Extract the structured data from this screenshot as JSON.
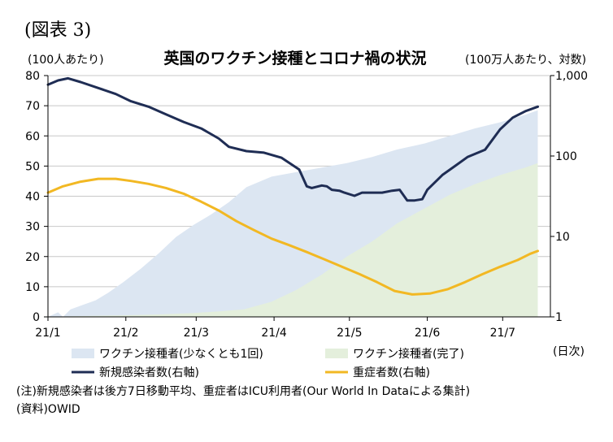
{
  "figure_label": "(図表 3)",
  "notes": {
    "note": "(注)新規感染者は後方7日移動平均、重症者はICU利用者(Our World In Dataによる集計)",
    "source": "(資料)OWID"
  },
  "chart_data": {
    "type": "area",
    "title": "英国のワクチン接種とコロナ禍の状況",
    "ylabel_left": "(100人あたり)",
    "ylabel_right": "(100万人あたり、対数)",
    "xlabel": "(日次)",
    "ylim_left": [
      0,
      80
    ],
    "yticks_left": [
      "0",
      "10",
      "20",
      "30",
      "40",
      "50",
      "60",
      "70",
      "80"
    ],
    "ylim_right": [
      1,
      1000
    ],
    "right_scale": "log",
    "yticks_right": [
      "1",
      "10",
      "100",
      "1,000"
    ],
    "categories": [
      "21/1",
      "21/2",
      "21/3",
      "21/4",
      "21/5",
      "21/6",
      "21/7"
    ],
    "grid": true,
    "legend_position": "bottom",
    "colors": {
      "vacc_partial": "#dce6f2",
      "vacc_full": "#e4efdc",
      "new_cases": "#1f2d54",
      "icu": "#f2b823"
    },
    "series": [
      {
        "name": "ワクチン接種者(少なくとも1回)",
        "axis": "left",
        "type": "area",
        "points": [
          [
            "2021-01-01",
            0
          ],
          [
            "2021-01-05",
            1.5
          ],
          [
            "2021-01-07",
            0
          ],
          [
            "2021-01-10",
            2.5
          ],
          [
            "2021-01-15",
            4
          ],
          [
            "2021-01-20",
            5.5
          ],
          [
            "2021-01-25",
            8
          ],
          [
            "2021-01-31",
            11.5
          ],
          [
            "2021-02-07",
            16
          ],
          [
            "2021-02-14",
            21
          ],
          [
            "2021-02-21",
            26.5
          ],
          [
            "2021-02-28",
            30.5
          ],
          [
            "2021-03-07",
            34
          ],
          [
            "2021-03-14",
            38
          ],
          [
            "2021-03-21",
            43
          ],
          [
            "2021-03-31",
            46.5
          ],
          [
            "2021-04-10",
            48
          ],
          [
            "2021-04-20",
            49.5
          ],
          [
            "2021-04-30",
            51
          ],
          [
            "2021-05-10",
            53
          ],
          [
            "2021-05-20",
            55.5
          ],
          [
            "2021-05-31",
            57.5
          ],
          [
            "2021-06-10",
            60
          ],
          [
            "2021-06-20",
            62.5
          ],
          [
            "2021-06-30",
            64.5
          ],
          [
            "2021-07-10",
            67
          ],
          [
            "2021-07-15",
            68.5
          ]
        ]
      },
      {
        "name": "ワクチン接種者(完了)",
        "axis": "left",
        "type": "area",
        "points": [
          [
            "2021-01-01",
            0
          ],
          [
            "2021-01-10",
            0.2
          ],
          [
            "2021-01-31",
            0.5
          ],
          [
            "2021-02-14",
            0.8
          ],
          [
            "2021-02-28",
            1.3
          ],
          [
            "2021-03-10",
            1.8
          ],
          [
            "2021-03-20",
            2.5
          ],
          [
            "2021-03-31",
            5
          ],
          [
            "2021-04-10",
            9
          ],
          [
            "2021-04-20",
            14
          ],
          [
            "2021-04-30",
            20
          ],
          [
            "2021-05-10",
            25
          ],
          [
            "2021-05-20",
            31
          ],
          [
            "2021-05-31",
            36
          ],
          [
            "2021-06-10",
            40.5
          ],
          [
            "2021-06-20",
            44
          ],
          [
            "2021-06-30",
            47
          ],
          [
            "2021-07-10",
            49.5
          ],
          [
            "2021-07-15",
            51
          ]
        ]
      },
      {
        "name": "新規感染者数(右軸)",
        "axis": "right",
        "type": "line",
        "points": [
          [
            "2021-01-01",
            770
          ],
          [
            "2021-01-05",
            870
          ],
          [
            "2021-01-09",
            925
          ],
          [
            "2021-01-14",
            830
          ],
          [
            "2021-01-21",
            700
          ],
          [
            "2021-01-28",
            590
          ],
          [
            "2021-02-03",
            480
          ],
          [
            "2021-02-10",
            410
          ],
          [
            "2021-02-17",
            330
          ],
          [
            "2021-02-24",
            265
          ],
          [
            "2021-03-03",
            220
          ],
          [
            "2021-03-10",
            165
          ],
          [
            "2021-03-14",
            130
          ],
          [
            "2021-03-21",
            115
          ],
          [
            "2021-03-28",
            110
          ],
          [
            "2021-04-04",
            95
          ],
          [
            "2021-04-11",
            68
          ],
          [
            "2021-04-14",
            42
          ],
          [
            "2021-04-16",
            40
          ],
          [
            "2021-04-20",
            43
          ],
          [
            "2021-04-22",
            42
          ],
          [
            "2021-04-24",
            38
          ],
          [
            "2021-04-27",
            37
          ],
          [
            "2021-04-29",
            35
          ],
          [
            "2021-05-03",
            32
          ],
          [
            "2021-05-06",
            35
          ],
          [
            "2021-05-10",
            35
          ],
          [
            "2021-05-14",
            35
          ],
          [
            "2021-05-18",
            37
          ],
          [
            "2021-05-21",
            38
          ],
          [
            "2021-05-24",
            28
          ],
          [
            "2021-05-27",
            28
          ],
          [
            "2021-05-30",
            29
          ],
          [
            "2021-06-01",
            38
          ],
          [
            "2021-06-07",
            58
          ],
          [
            "2021-06-12",
            75
          ],
          [
            "2021-06-17",
            97
          ],
          [
            "2021-06-24",
            120
          ],
          [
            "2021-06-30",
            215
          ],
          [
            "2021-07-05",
            300
          ],
          [
            "2021-07-10",
            360
          ],
          [
            "2021-07-15",
            410
          ]
        ]
      },
      {
        "name": "重症者数(右軸)",
        "axis": "right",
        "type": "line",
        "points": [
          [
            "2021-01-01",
            35
          ],
          [
            "2021-01-07",
            42
          ],
          [
            "2021-01-14",
            48
          ],
          [
            "2021-01-21",
            52
          ],
          [
            "2021-01-28",
            52
          ],
          [
            "2021-02-03",
            49
          ],
          [
            "2021-02-10",
            45
          ],
          [
            "2021-02-17",
            40
          ],
          [
            "2021-02-24",
            34
          ],
          [
            "2021-03-03",
            27
          ],
          [
            "2021-03-10",
            21
          ],
          [
            "2021-03-17",
            15.5
          ],
          [
            "2021-03-24",
            12
          ],
          [
            "2021-03-31",
            9.4
          ],
          [
            "2021-04-07",
            7.8
          ],
          [
            "2021-04-14",
            6.4
          ],
          [
            "2021-04-21",
            5.2
          ],
          [
            "2021-04-28",
            4.2
          ],
          [
            "2021-05-05",
            3.4
          ],
          [
            "2021-05-12",
            2.7
          ],
          [
            "2021-05-19",
            2.1
          ],
          [
            "2021-05-26",
            1.9
          ],
          [
            "2021-06-02",
            1.95
          ],
          [
            "2021-06-09",
            2.2
          ],
          [
            "2021-06-16",
            2.7
          ],
          [
            "2021-06-23",
            3.4
          ],
          [
            "2021-06-30",
            4.2
          ],
          [
            "2021-07-07",
            5.1
          ],
          [
            "2021-07-12",
            6.1
          ],
          [
            "2021-07-15",
            6.6
          ]
        ]
      }
    ]
  }
}
